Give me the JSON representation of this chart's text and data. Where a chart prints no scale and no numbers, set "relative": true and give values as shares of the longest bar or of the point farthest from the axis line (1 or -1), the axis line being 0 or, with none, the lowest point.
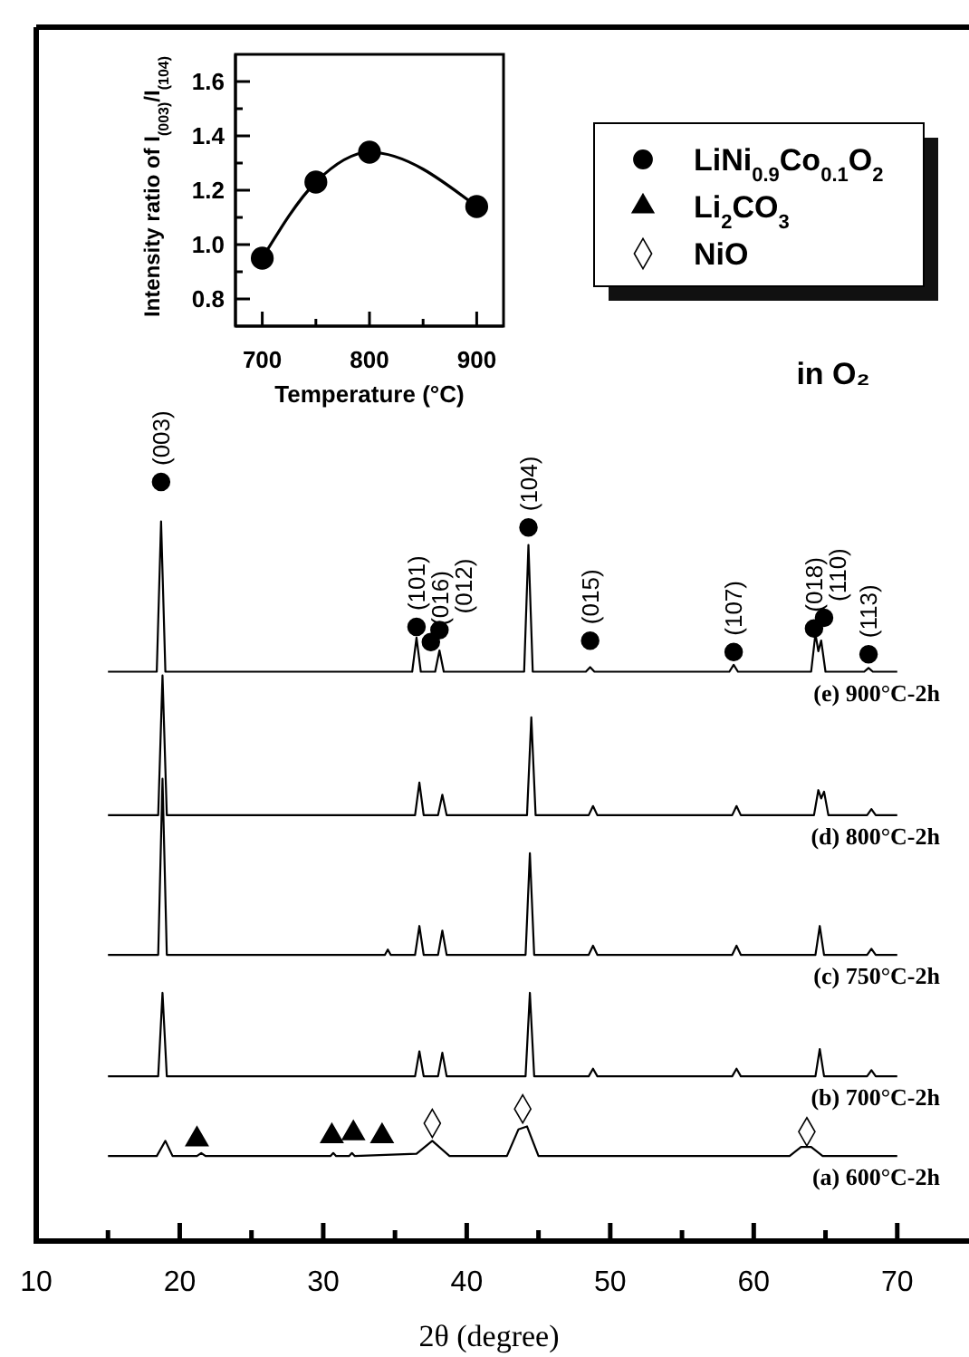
{
  "chart_data": [
    {
      "type": "line",
      "xlabel": "Temperature (°C)",
      "ylabel": "Intensity ratio of I$_{(003)}$/I$_{(104)}$",
      "xlim": [
        675,
        925
      ],
      "ylim": [
        0.7,
        1.7
      ],
      "xticks": [
        700,
        {
          "value": 750,
          "label": null
        },
        800,
        {
          "value": 850,
          "label": null
        },
        900
      ],
      "yticks": [
        0.8,
        {
          "value": 0.9,
          "label": null
        },
        "1.0",
        {
          "value": 1.1,
          "label": null
        },
        1.2,
        {
          "value": 1.3,
          "label": null
        },
        1.4,
        {
          "value": 1.5,
          "label": null
        },
        1.6
      ],
      "x": [
        700,
        750,
        800,
        900
      ],
      "values": [
        0.95,
        1.23,
        1.34,
        1.14
      ],
      "color": "#000000",
      "marker": "circle"
    },
    {
      "type": "line",
      "xlabel": "2θ (degree)",
      "relative": true,
      "xlim": [
        10,
        75
      ],
      "xticks": [
        10,
        {
          "value": 15,
          "label": null
        },
        20,
        {
          "value": 25,
          "label": null
        },
        30,
        {
          "value": 35,
          "label": null
        },
        40,
        {
          "value": 45,
          "label": null
        },
        50,
        {
          "value": 55,
          "label": null
        },
        60,
        {
          "value": 65,
          "label": null
        },
        70
      ],
      "tick_labels": "x",
      "legend": "top right",
      "series": [
        {
          "name": "(e) 900°C-2h",
          "color": "#000000",
          "x": [
            15,
            18.4,
            18.7,
            19.0,
            36.2,
            36.5,
            36.8,
            37.8,
            38.1,
            38.4,
            44.0,
            44.3,
            44.6,
            48.3,
            48.6,
            48.9,
            58.3,
            58.6,
            58.9,
            64.0,
            64.3,
            64.5,
            64.7,
            65.0,
            67.7,
            68.0,
            68.3,
            70
          ],
          "values": [
            0.75,
            0.75,
            0.948,
            0.75,
            0.75,
            0.795,
            0.75,
            0.75,
            0.778,
            0.75,
            0.75,
            0.917,
            0.75,
            0.75,
            0.756,
            0.75,
            0.75,
            0.759,
            0.75,
            0.75,
            0.8,
            0.777,
            0.791,
            0.75,
            0.75,
            0.755,
            0.75,
            0.75
          ]
        },
        {
          "name": "(d) 800°C-2h",
          "color": "#000000",
          "x": [
            15,
            18.5,
            18.8,
            19.1,
            36.4,
            36.7,
            37.0,
            38.0,
            38.3,
            38.6,
            44.2,
            44.5,
            44.8,
            48.5,
            48.8,
            49.1,
            58.5,
            58.8,
            59.1,
            64.2,
            64.5,
            64.7,
            64.9,
            65.2,
            67.9,
            68.2,
            68.5,
            70
          ],
          "values": [
            0.561,
            0.561,
            0.745,
            0.561,
            0.561,
            0.604,
            0.561,
            0.561,
            0.588,
            0.561,
            0.561,
            0.69,
            0.561,
            0.561,
            0.573,
            0.561,
            0.561,
            0.573,
            0.561,
            0.561,
            0.594,
            0.583,
            0.592,
            0.561,
            0.561,
            0.569,
            0.561,
            0.561
          ]
        },
        {
          "name": "(c) 750°C-2h",
          "color": "#000000",
          "x": [
            15,
            18.5,
            18.8,
            19.1,
            34.3,
            34.5,
            34.7,
            36.4,
            36.7,
            37.0,
            38.0,
            38.3,
            38.6,
            44.1,
            44.4,
            44.7,
            48.5,
            48.8,
            49.1,
            58.5,
            58.8,
            59.1,
            64.3,
            64.6,
            64.9,
            67.9,
            68.2,
            68.5,
            70
          ],
          "values": [
            0.377,
            0.377,
            0.609,
            0.377,
            0.377,
            0.384,
            0.377,
            0.377,
            0.415,
            0.377,
            0.377,
            0.409,
            0.377,
            0.377,
            0.511,
            0.377,
            0.377,
            0.389,
            0.377,
            0.377,
            0.389,
            0.377,
            0.377,
            0.415,
            0.377,
            0.377,
            0.385,
            0.377,
            0.377
          ]
        },
        {
          "name": "(b) 700°C-2h",
          "color": "#000000",
          "x": [
            15,
            18.5,
            18.8,
            19.1,
            36.4,
            36.7,
            37.0,
            38.0,
            38.3,
            38.6,
            44.1,
            44.4,
            44.7,
            48.5,
            48.8,
            49.1,
            58.5,
            58.8,
            59.1,
            64.3,
            64.6,
            64.9,
            67.9,
            68.2,
            68.5,
            70
          ],
          "values": [
            0.217,
            0.217,
            0.327,
            0.217,
            0.217,
            0.25,
            0.217,
            0.217,
            0.248,
            0.217,
            0.217,
            0.327,
            0.217,
            0.217,
            0.227,
            0.217,
            0.217,
            0.227,
            0.217,
            0.217,
            0.253,
            0.217,
            0.217,
            0.225,
            0.217,
            0.217
          ]
        },
        {
          "name": "(a) 600°C-2h",
          "color": "#000000",
          "x": [
            15,
            18.4,
            19.0,
            19.5,
            21.2,
            21.5,
            21.8,
            30.5,
            30.7,
            30.9,
            31.8,
            32.0,
            32.2,
            36.5,
            37.6,
            38.8,
            42.8,
            43.6,
            44.2,
            45.0,
            62.5,
            63.3,
            64.0,
            64.8,
            70
          ],
          "values": [
            0.112,
            0.112,
            0.132,
            0.112,
            0.112,
            0.116,
            0.112,
            0.112,
            0.116,
            0.112,
            0.112,
            0.116,
            0.112,
            0.115,
            0.132,
            0.112,
            0.112,
            0.147,
            0.151,
            0.112,
            0.112,
            0.124,
            0.124,
            0.112,
            0.112
          ]
        },
        {
          "name": "LiNi$_{0.9}$Co$_{0.1}$O$_{2}$",
          "type": "scatter",
          "marker": "circle",
          "color": "#000000",
          "x": [
            18.7,
            36.5,
            37.5,
            38.1,
            44.3,
            48.6,
            58.6,
            64.2,
            64.9,
            68.0
          ],
          "values": [
            1,
            0.809,
            0.789,
            0.805,
            0.94,
            0.791,
            0.776,
            0.807,
            0.821,
            0.773
          ]
        },
        {
          "name": "Li$_{2}$CO$_{3}$",
          "type": "scatter",
          "marker": "triangle",
          "color": "#000000",
          "x": [
            21.2,
            30.6,
            32.1,
            34.1
          ],
          "values": [
            0.134,
            0.138,
            0.142,
            0.138
          ]
        },
        {
          "name": "NiO",
          "type": "scatter",
          "marker": "diamond",
          "color": "#ffffff",
          "x": [
            37.6,
            43.9,
            63.7
          ],
          "values": [
            0.155,
            0.174,
            0.144
          ]
        }
      ],
      "annotations": [
        "(003)",
        "(101)",
        "(016)",
        "(012)",
        "(104)",
        "(015)",
        "(107)",
        "(018)",
        "(110)",
        "(113)",
        "in O₂"
      ]
    }
  ]
}
